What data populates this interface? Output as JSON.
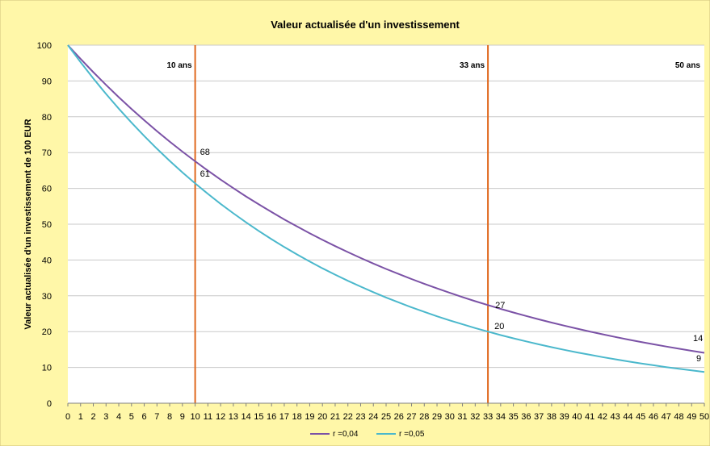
{
  "chart_data": {
    "type": "line",
    "title": "Valeur actualisée d'un investissement",
    "xlabel": "",
    "ylabel": "Valeur actualisée  d'un investissement de 100 EUR",
    "xlim": [
      0,
      50
    ],
    "ylim": [
      0,
      100
    ],
    "y_ticks": [
      "0",
      "10",
      "20",
      "30",
      "40",
      "50",
      "60",
      "70",
      "80",
      "90",
      "100"
    ],
    "x_ticks": [
      "0",
      "1",
      "2",
      "3",
      "4",
      "5",
      "6",
      "7",
      "8",
      "9",
      "10",
      "11",
      "12",
      "13",
      "14",
      "15",
      "16",
      "17",
      "18",
      "19",
      "20",
      "21",
      "22",
      "23",
      "24",
      "25",
      "26",
      "27",
      "28",
      "29",
      "30",
      "31",
      "32",
      "33",
      "34",
      "35",
      "36",
      "37",
      "38",
      "39",
      "40",
      "41",
      "42",
      "43",
      "44",
      "45",
      "46",
      "47",
      "48",
      "49",
      "50"
    ],
    "grid": "horizontal",
    "legend_position": "bottom",
    "series": [
      {
        "name": "r =0,04",
        "rate": 0.04,
        "color": "#7b52a6",
        "x": [
          0,
          1,
          2,
          3,
          4,
          5,
          6,
          7,
          8,
          9,
          10,
          11,
          12,
          13,
          14,
          15,
          16,
          17,
          18,
          19,
          20,
          21,
          22,
          23,
          24,
          25,
          26,
          27,
          28,
          29,
          30,
          31,
          32,
          33,
          34,
          35,
          36,
          37,
          38,
          39,
          40,
          41,
          42,
          43,
          44,
          45,
          46,
          47,
          48,
          49,
          50
        ],
        "values": [
          100.0,
          96.15,
          92.46,
          88.9,
          85.48,
          82.19,
          79.03,
          75.99,
          73.07,
          70.26,
          67.56,
          64.96,
          62.46,
          60.06,
          57.75,
          55.53,
          53.39,
          51.34,
          49.36,
          47.46,
          45.64,
          43.88,
          42.2,
          40.57,
          39.01,
          37.51,
          36.07,
          34.68,
          33.35,
          32.07,
          30.83,
          29.65,
          28.5,
          27.41,
          26.35,
          25.34,
          24.37,
          23.43,
          22.53,
          21.66,
          20.83,
          20.03,
          19.26,
          18.52,
          17.8,
          17.12,
          16.46,
          15.83,
          15.22,
          14.63,
          14.07
        ]
      },
      {
        "name": "r =0,05",
        "rate": 0.05,
        "color": "#4bb8cc",
        "x": [
          0,
          1,
          2,
          3,
          4,
          5,
          6,
          7,
          8,
          9,
          10,
          11,
          12,
          13,
          14,
          15,
          16,
          17,
          18,
          19,
          20,
          21,
          22,
          23,
          24,
          25,
          26,
          27,
          28,
          29,
          30,
          31,
          32,
          33,
          34,
          35,
          36,
          37,
          38,
          39,
          40,
          41,
          42,
          43,
          44,
          45,
          46,
          47,
          48,
          49,
          50
        ],
        "values": [
          100.0,
          95.24,
          90.7,
          86.38,
          82.27,
          78.35,
          74.62,
          71.07,
          67.68,
          64.46,
          61.39,
          58.47,
          55.68,
          53.03,
          50.51,
          48.1,
          45.81,
          43.63,
          41.55,
          39.57,
          37.69,
          35.89,
          34.18,
          32.56,
          31.01,
          29.53,
          28.12,
          26.78,
          25.51,
          24.29,
          23.14,
          22.04,
          20.99,
          19.99,
          19.04,
          18.13,
          17.27,
          16.44,
          15.66,
          14.91,
          14.2,
          13.53,
          12.88,
          12.27,
          11.69,
          11.13,
          10.6,
          10.09,
          9.61,
          9.16,
          8.72
        ]
      }
    ],
    "vertical_markers": [
      {
        "x": 10,
        "label": "10 ans"
      },
      {
        "x": 33,
        "label": "33 ans"
      },
      {
        "x": 50,
        "label": "50 ans",
        "line": false
      }
    ],
    "data_labels": [
      {
        "x": 10,
        "y": 68,
        "text": "68"
      },
      {
        "x": 10,
        "y": 61,
        "text": "61"
      },
      {
        "x": 33,
        "y": 27,
        "text": "27"
      },
      {
        "x": 33,
        "y": 20,
        "text": "20"
      },
      {
        "x": 50,
        "y": 14,
        "text": "14"
      },
      {
        "x": 50,
        "y": 9,
        "text": "9"
      }
    ]
  },
  "colors": {
    "background": "#fff7a8",
    "plot_background": "#ffffff",
    "grid": "#c8c8c8",
    "marker_line": "#e0691f",
    "border": "#cfc27a"
  }
}
